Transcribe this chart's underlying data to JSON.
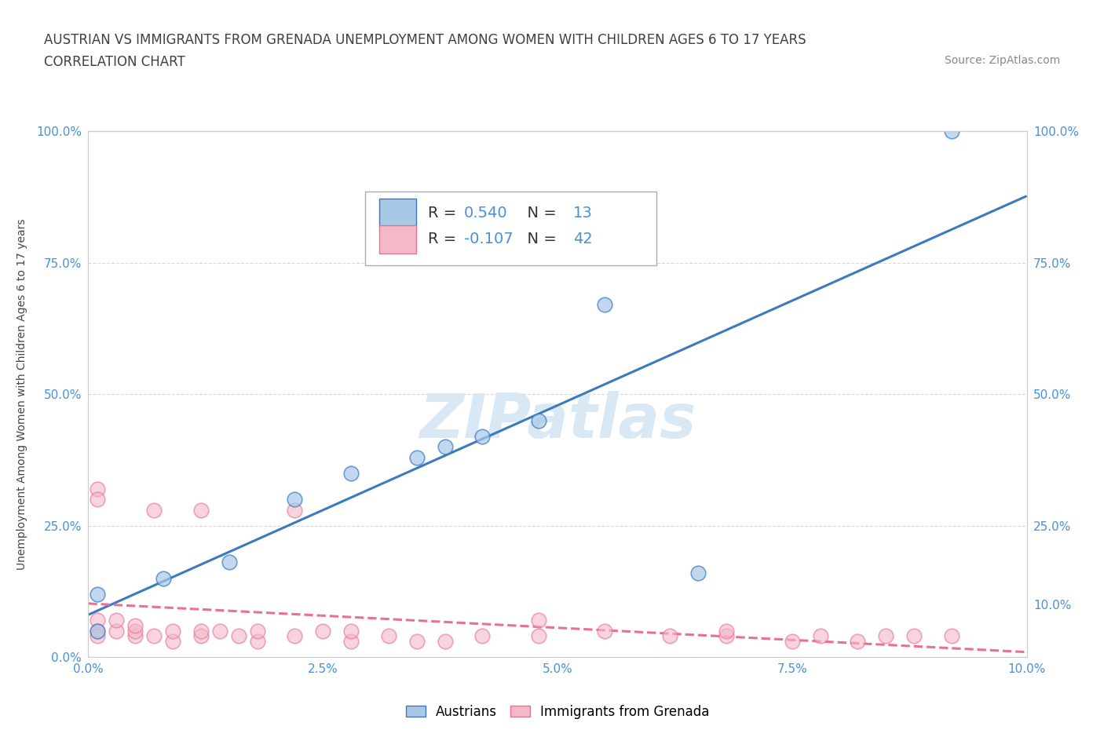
{
  "title_line1": "AUSTRIAN VS IMMIGRANTS FROM GRENADA UNEMPLOYMENT AMONG WOMEN WITH CHILDREN AGES 6 TO 17 YEARS",
  "title_line2": "CORRELATION CHART",
  "source_text": "Source: ZipAtlas.com",
  "ylabel": "Unemployment Among Women with Children Ages 6 to 17 years",
  "xlim": [
    0.0,
    0.1
  ],
  "ylim": [
    -0.05,
    1.05
  ],
  "plot_ylim": [
    0.0,
    1.0
  ],
  "xtick_labels": [
    "0.0%",
    "2.5%",
    "5.0%",
    "7.5%",
    "10.0%"
  ],
  "xtick_values": [
    0.0,
    0.025,
    0.05,
    0.075,
    0.1
  ],
  "ytick_labels": [
    "0.0%",
    "25.0%",
    "50.0%",
    "75.0%",
    "100.0%"
  ],
  "ytick_values": [
    0.0,
    0.25,
    0.5,
    0.75,
    1.0
  ],
  "right_ytick_labels": [
    "100.0%",
    "75.0%",
    "50.0%",
    "25.0%",
    "10.0%"
  ],
  "right_ytick_values": [
    1.0,
    0.75,
    0.5,
    0.25,
    0.1
  ],
  "blue_color": "#a8c8e8",
  "pink_color": "#f4b8c8",
  "blue_line_color": "#3a7abf",
  "pink_line_color": "#e87090",
  "watermark_color": "#d8e8f4",
  "R_blue": 0.54,
  "N_blue": 13,
  "R_pink": -0.107,
  "N_pink": 42,
  "blue_scatter_x": [
    0.001,
    0.001,
    0.008,
    0.015,
    0.022,
    0.028,
    0.035,
    0.038,
    0.042,
    0.048,
    0.055,
    0.065,
    0.092
  ],
  "blue_scatter_y": [
    0.05,
    0.12,
    0.15,
    0.18,
    0.3,
    0.35,
    0.38,
    0.4,
    0.42,
    0.45,
    0.67,
    0.16,
    1.0
  ],
  "pink_scatter_x": [
    0.001,
    0.001,
    0.001,
    0.001,
    0.001,
    0.003,
    0.003,
    0.005,
    0.005,
    0.005,
    0.007,
    0.007,
    0.009,
    0.009,
    0.012,
    0.012,
    0.012,
    0.014,
    0.016,
    0.018,
    0.018,
    0.022,
    0.022,
    0.025,
    0.028,
    0.028,
    0.032,
    0.035,
    0.038,
    0.042,
    0.048,
    0.055,
    0.062,
    0.068,
    0.068,
    0.075,
    0.078,
    0.082,
    0.085,
    0.088,
    0.092,
    0.048
  ],
  "pink_scatter_y": [
    0.32,
    0.3,
    0.07,
    0.05,
    0.04,
    0.05,
    0.07,
    0.04,
    0.05,
    0.06,
    0.04,
    0.28,
    0.03,
    0.05,
    0.04,
    0.05,
    0.28,
    0.05,
    0.04,
    0.03,
    0.05,
    0.28,
    0.04,
    0.05,
    0.03,
    0.05,
    0.04,
    0.03,
    0.03,
    0.04,
    0.04,
    0.05,
    0.04,
    0.04,
    0.05,
    0.03,
    0.04,
    0.03,
    0.04,
    0.04,
    0.04,
    0.07
  ],
  "grid_color": "#d8d8d8",
  "bg_color": "#ffffff",
  "title_color": "#404040",
  "source_color": "#888888",
  "tick_color": "#4a90d9",
  "title_fontsize": 12,
  "subtitle_fontsize": 12,
  "axis_label_fontsize": 10,
  "tick_fontsize": 11,
  "legend_fontsize": 14
}
